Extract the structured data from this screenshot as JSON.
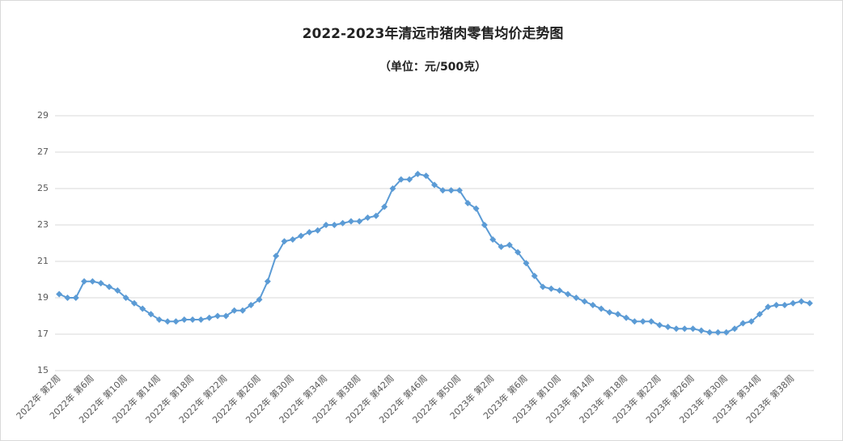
{
  "chart_data": {
    "type": "line",
    "title": "2022-2023年清远市猪肉零售均价走势图",
    "subtitle": "（单位：元/500克）",
    "categories": [
      "2022年 第2周",
      null,
      null,
      null,
      "2022年 第6周",
      null,
      null,
      null,
      "2022年 第10周",
      null,
      null,
      null,
      "2022年 第14周",
      null,
      null,
      null,
      "2022年 第18周",
      null,
      null,
      null,
      "2022年 第22周",
      null,
      null,
      null,
      "2022年 第26周",
      null,
      null,
      null,
      "2022年 第30周",
      null,
      null,
      null,
      "2022年 第34周",
      null,
      null,
      null,
      "2022年 第38周",
      null,
      null,
      null,
      "2022年 第42周",
      null,
      null,
      null,
      "2022年 第46周",
      null,
      null,
      null,
      "2022年 第50周",
      null,
      null,
      null,
      "2023年 第2周",
      null,
      null,
      null,
      "2023年 第6周",
      null,
      null,
      null,
      "2023年 第10周",
      null,
      null,
      null,
      "2023年 第14周",
      null,
      null,
      null,
      "2023年 第18周",
      null,
      null,
      null,
      "2023年 第22周",
      null,
      null,
      null,
      "2023年 第26周",
      null,
      null,
      null,
      "2023年 第30周",
      null,
      null,
      null,
      "2023年 第34周",
      null,
      null,
      null,
      "2023年 第38周",
      null,
      null
    ],
    "series": [
      {
        "name": "猪肉零售均价",
        "color": "#5b9bd5",
        "values": [
          19.2,
          19.0,
          19.0,
          19.9,
          19.9,
          19.8,
          19.6,
          19.4,
          19.0,
          18.7,
          18.4,
          18.1,
          17.8,
          17.7,
          17.7,
          17.8,
          17.8,
          17.8,
          17.9,
          18.0,
          18.0,
          18.3,
          18.3,
          18.6,
          18.9,
          19.9,
          21.3,
          22.1,
          22.2,
          22.4,
          22.6,
          22.7,
          23.0,
          23.0,
          23.1,
          23.2,
          23.2,
          23.4,
          23.5,
          24.0,
          25.0,
          25.5,
          25.5,
          25.8,
          25.7,
          25.2,
          24.9,
          24.9,
          24.9,
          24.2,
          23.9,
          23.0,
          22.2,
          21.8,
          21.9,
          21.5,
          20.9,
          20.2,
          19.6,
          19.5,
          19.4,
          19.2,
          19.0,
          18.8,
          18.6,
          18.4,
          18.2,
          18.1,
          17.9,
          17.7,
          17.7,
          17.7,
          17.5,
          17.4,
          17.3,
          17.3,
          17.3,
          17.2,
          17.1,
          17.1,
          17.1,
          17.3,
          17.6,
          17.7,
          18.1,
          18.5,
          18.6,
          18.6,
          18.7,
          18.8,
          18.7
        ]
      }
    ],
    "ylim": [
      15,
      29
    ],
    "yticks": [
      15,
      17,
      19,
      21,
      23,
      25,
      27,
      29
    ],
    "grid": true
  }
}
